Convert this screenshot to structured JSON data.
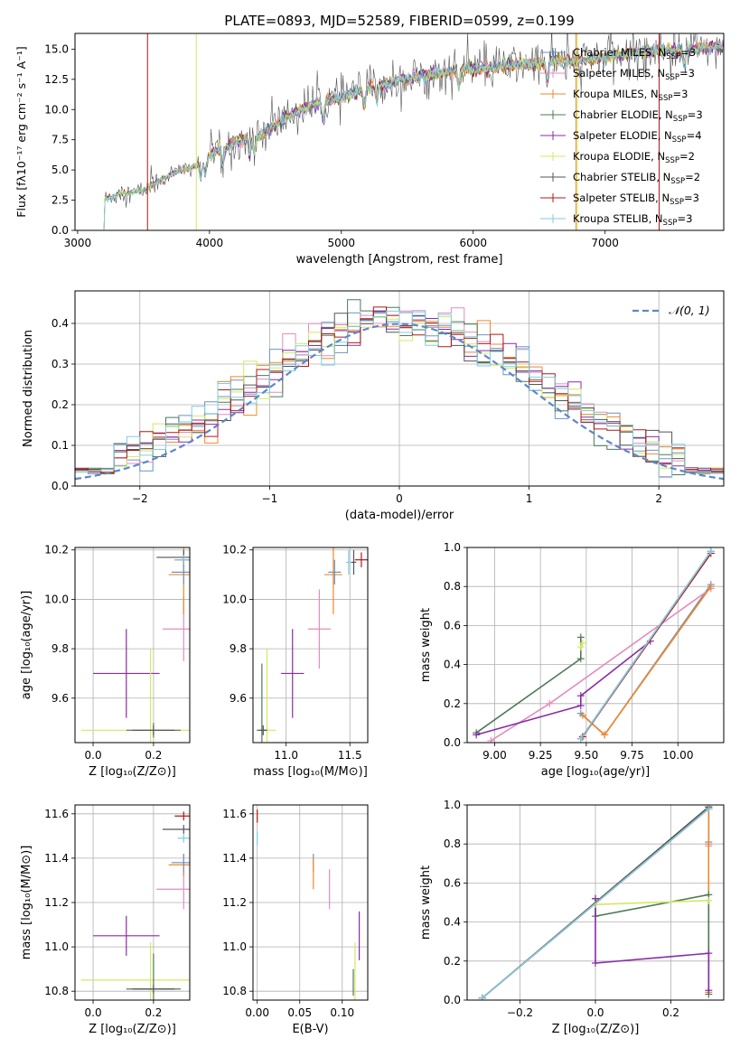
{
  "colors": {
    "Chabrier MILES": "#6a93c6",
    "Salpeter MILES": "#e48cbf",
    "Kroupa MILES": "#ee8a2a",
    "Chabrier ELODIE": "#4e7a59",
    "Salpeter ELODIE": "#8a2ba8",
    "Kroupa ELODIE": "#d4e860",
    "Chabrier STELIB": "#555555",
    "Salpeter STELIB": "#b01818",
    "Kroupa STELIB": "#7fcde0"
  },
  "chart_data": [
    {
      "id": "spectrum",
      "type": "line",
      "title": "PLATE=0893, MJD=52589, FIBERID=0599, z=0.199",
      "xlabel": "wavelength [Angstrom, rest frame]",
      "ylabel": "Flux [fλ10⁻¹⁷ erg cm⁻² s⁻¹ A⁻¹]",
      "xlim": [
        2980,
        7900
      ],
      "ylim": [
        0,
        16.3
      ],
      "xticks": [
        3000,
        4000,
        5000,
        6000,
        7000
      ],
      "yticks": [
        0.0,
        2.5,
        5.0,
        7.5,
        10.0,
        12.5,
        15.0
      ],
      "grid": false,
      "legend": "top-right",
      "continuum_x": [
        3200,
        3300,
        3400,
        3500,
        3600,
        3700,
        3800,
        3900,
        4000,
        4200,
        4400,
        4600,
        4800,
        5000,
        5200,
        5400,
        5600,
        5800,
        6000,
        6200,
        6400,
        6600,
        6800,
        7000,
        7200,
        7400,
        7600,
        7800
      ],
      "continuum_y": [
        2.5,
        3.0,
        3.1,
        3.3,
        4.0,
        4.6,
        5.0,
        5.4,
        6.2,
        7.3,
        7.9,
        9.5,
        10.5,
        11.0,
        11.8,
        12.3,
        12.7,
        13.1,
        13.4,
        13.5,
        13.8,
        14.0,
        14.0,
        14.3,
        14.6,
        14.9,
        15.0,
        15.2
      ],
      "legend_entries": [
        {
          "name": "Chabrier MILES",
          "label_main": "Chabrier MILES, N",
          "label_sub": "SSP",
          "label_end": "=3"
        },
        {
          "name": "Salpeter MILES",
          "label_main": "Salpeter MILES, N",
          "label_sub": "SSP",
          "label_end": "=3"
        },
        {
          "name": "Kroupa MILES",
          "label_main": "Kroupa MILES, N",
          "label_sub": "SSP",
          "label_end": "=3"
        },
        {
          "name": "Chabrier ELODIE",
          "label_main": "Chabrier ELODIE, N",
          "label_sub": "SSP",
          "label_end": "=3"
        },
        {
          "name": "Salpeter ELODIE",
          "label_main": "Salpeter ELODIE, N",
          "label_sub": "SSP",
          "label_end": "=4"
        },
        {
          "name": "Kroupa ELODIE",
          "label_main": "Kroupa ELODIE, N",
          "label_sub": "SSP",
          "label_end": "=2"
        },
        {
          "name": "Chabrier STELIB",
          "label_main": "Chabrier STELIB, N",
          "label_sub": "SSP",
          "label_end": "=2"
        },
        {
          "name": "Salpeter STELIB",
          "label_main": "Salpeter STELIB, N",
          "label_sub": "SSP",
          "label_end": "=3"
        },
        {
          "name": "Kroupa STELIB",
          "label_main": "Kroupa STELIB, N",
          "label_sub": "SSP",
          "label_end": "=3"
        }
      ],
      "verticals": [
        {
          "x": 3530,
          "color": "#b01818"
        },
        {
          "x": 3900,
          "color": "#d4e860"
        },
        {
          "x": 6780,
          "color": "#ee8a2a"
        },
        {
          "x": 6790,
          "color": "#d4e860"
        },
        {
          "x": 7410,
          "color": "#b01818"
        }
      ]
    },
    {
      "id": "residuals",
      "type": "histogram",
      "xlabel": "(data-model)/error",
      "ylabel": "Normed distribution",
      "xlim": [
        -2.5,
        2.5
      ],
      "ylim": [
        0,
        0.48
      ],
      "xticks": [
        -2,
        -1,
        0,
        1,
        2
      ],
      "xtick_labels": [
        "−2",
        "−1",
        "0",
        "1",
        "2"
      ],
      "yticks": [
        0.0,
        0.1,
        0.2,
        0.3,
        0.4
      ],
      "grid": true,
      "legend": "top-right",
      "gaussian_label": "𝒩(0, 1)",
      "gaussian_color": "#5b87c9",
      "bin_width": 0.1
    },
    {
      "id": "age_vs_Z",
      "type": "errorbar",
      "xlabel": "Z [log₁₀(Z/Z⊙)]",
      "ylabel": "age  [log₁₀(age/yr)]",
      "xlim": [
        -0.06,
        0.32
      ],
      "ylim": [
        9.42,
        10.21
      ],
      "xticks": [
        0.0,
        0.2
      ],
      "yticks": [
        9.6,
        9.8,
        10.0,
        10.2
      ],
      "grid": true,
      "points": [
        {
          "series": "Salpeter ELODIE",
          "x": 0.11,
          "y": 9.7,
          "xerr": 0.11,
          "yerr": 0.18
        },
        {
          "series": "Kroupa ELODIE",
          "x": 0.19,
          "y": 9.47,
          "xerr": 0.23,
          "yerr": 0.33
        },
        {
          "series": "Chabrier ELODIE",
          "x": 0.2,
          "y": 9.47,
          "xerr": 0.09,
          "yerr": 0.03
        },
        {
          "series": "Chabrier STELIB",
          "x": 0.2,
          "y": 9.47,
          "xerr": 0.07,
          "yerr": 0.02
        },
        {
          "series": "Salpeter MILES",
          "x": 0.3,
          "y": 9.88,
          "xerr": 0.07,
          "yerr": 0.13
        },
        {
          "series": "Kroupa MILES",
          "x": 0.3,
          "y": 10.1,
          "xerr": 0.05,
          "yerr": 0.16
        },
        {
          "series": "Chabrier MILES",
          "x": 0.3,
          "y": 10.11,
          "xerr": 0.04,
          "yerr": 0.05
        },
        {
          "series": "Chabrier STELIB",
          "x": 0.3,
          "y": 10.17,
          "xerr": 0.09,
          "yerr": 0.03
        },
        {
          "series": "Salpeter STELIB",
          "x": 0.3,
          "y": 10.16,
          "xerr": 0.03,
          "yerr": 0.02
        },
        {
          "series": "Kroupa STELIB",
          "x": 0.3,
          "y": 10.16,
          "xerr": 0.03,
          "yerr": 0.02
        }
      ]
    },
    {
      "id": "age_vs_mass",
      "type": "errorbar",
      "xlabel": "mass [log₁₀(M/M⊙)]",
      "ylabel": "",
      "xlim": [
        10.74,
        11.64
      ],
      "ylim": [
        9.42,
        10.21
      ],
      "xticks": [
        11.0,
        11.5
      ],
      "yticks": [
        9.6,
        9.8,
        10.0,
        10.2
      ],
      "grid": true,
      "points": [
        {
          "series": "Salpeter ELODIE",
          "x": 11.05,
          "y": 9.7,
          "xerr": 0.09,
          "yerr": 0.18
        },
        {
          "series": "Kroupa ELODIE",
          "x": 10.85,
          "y": 9.47,
          "xerr": 0.07,
          "yerr": 0.33
        },
        {
          "series": "Chabrier ELODIE",
          "x": 10.81,
          "y": 9.47,
          "xerr": 0.04,
          "yerr": 0.27
        },
        {
          "series": "Chabrier STELIB",
          "x": 10.82,
          "y": 9.47,
          "xerr": 0.03,
          "yerr": 0.02
        },
        {
          "series": "Salpeter MILES",
          "x": 11.26,
          "y": 9.88,
          "xerr": 0.09,
          "yerr": 0.16
        },
        {
          "series": "Kroupa MILES",
          "x": 11.37,
          "y": 10.1,
          "xerr": 0.07,
          "yerr": 0.16
        },
        {
          "series": "Chabrier MILES",
          "x": 11.38,
          "y": 10.11,
          "xerr": 0.05,
          "yerr": 0.05
        },
        {
          "series": "Chabrier STELIB",
          "x": 11.53,
          "y": 10.15,
          "xerr": 0.02,
          "yerr": 0.05
        },
        {
          "series": "Salpeter STELIB",
          "x": 11.59,
          "y": 10.16,
          "xerr": 0.05,
          "yerr": 0.03
        },
        {
          "series": "Kroupa STELIB",
          "x": 11.49,
          "y": 10.15,
          "xerr": 0.02,
          "yerr": 0.05
        }
      ]
    },
    {
      "id": "weight_vs_age",
      "type": "line",
      "xlabel": "age  [log₁₀(age/yr)]",
      "ylabel": "mass weight",
      "xlim": [
        8.85,
        10.25
      ],
      "ylim": [
        0,
        1.0
      ],
      "xticks": [
        9.0,
        9.25,
        9.5,
        9.75,
        10.0
      ],
      "xtick_labels": [
        "9.00",
        "9.25",
        "9.50",
        "9.75",
        "10.00"
      ],
      "yticks": [
        0.0,
        0.2,
        0.4,
        0.6,
        0.8,
        1.0
      ],
      "grid": true,
      "series": [
        {
          "name": "Chabrier MILES",
          "x": [
            9.47,
            9.6,
            10.18
          ],
          "y": [
            0.15,
            0.04,
            0.81
          ]
        },
        {
          "name": "Salpeter MILES",
          "x": [
            8.98,
            9.3,
            10.18
          ],
          "y": [
            0.01,
            0.2,
            0.79
          ]
        },
        {
          "name": "Kroupa MILES",
          "x": [
            9.48,
            9.6,
            10.18
          ],
          "y": [
            0.14,
            0.04,
            0.8
          ]
        },
        {
          "name": "Chabrier ELODIE",
          "x": [
            8.9,
            9.47,
            9.47
          ],
          "y": [
            0.05,
            0.43,
            0.54
          ]
        },
        {
          "name": "Salpeter ELODIE",
          "x": [
            8.9,
            9.47,
            9.47,
            9.85
          ],
          "y": [
            0.04,
            0.19,
            0.24,
            0.52
          ]
        },
        {
          "name": "Kroupa ELODIE",
          "x": [
            9.47,
            9.48
          ],
          "y": [
            0.49,
            0.51
          ]
        },
        {
          "name": "Chabrier STELIB",
          "x": [
            9.47,
            10.18
          ],
          "y": [
            0.02,
            0.98
          ]
        },
        {
          "name": "Salpeter STELIB",
          "x": [
            9.48,
            10.18
          ],
          "y": [
            0.03,
            0.97
          ]
        },
        {
          "name": "Kroupa STELIB",
          "x": [
            9.47,
            10.18
          ],
          "y": [
            0.02,
            0.98
          ]
        }
      ]
    },
    {
      "id": "mass_vs_Z",
      "type": "errorbar",
      "xlabel": "Z [log₁₀(Z/Z⊙)]",
      "ylabel": "mass [log₁₀(M/M⊙)]",
      "xlim": [
        -0.06,
        0.32
      ],
      "ylim": [
        10.76,
        11.64
      ],
      "xticks": [
        0.0,
        0.2
      ],
      "yticks": [
        10.8,
        11.0,
        11.2,
        11.4,
        11.6
      ],
      "grid": true,
      "points": [
        {
          "series": "Salpeter ELODIE",
          "x": 0.11,
          "y": 11.05,
          "xerr": 0.11,
          "yerr": 0.09
        },
        {
          "series": "Kroupa ELODIE",
          "x": 0.19,
          "y": 10.85,
          "xerr": 0.23,
          "yerr": 0.17
        },
        {
          "series": "Chabrier ELODIE",
          "x": 0.2,
          "y": 10.81,
          "xerr": 0.09,
          "yerr": 0.16
        },
        {
          "series": "Chabrier STELIB",
          "x": 0.2,
          "y": 10.81,
          "xerr": 0.07,
          "yerr": 0.02
        },
        {
          "series": "Salpeter MILES",
          "x": 0.3,
          "y": 11.26,
          "xerr": 0.09,
          "yerr": 0.09
        },
        {
          "series": "Kroupa MILES",
          "x": 0.3,
          "y": 11.37,
          "xerr": 0.05,
          "yerr": 0.05
        },
        {
          "series": "Chabrier MILES",
          "x": 0.3,
          "y": 11.38,
          "xerr": 0.04,
          "yerr": 0.04
        },
        {
          "series": "Chabrier STELIB",
          "x": 0.3,
          "y": 11.53,
          "xerr": 0.07,
          "yerr": 0.02
        },
        {
          "series": "Salpeter STELIB",
          "x": 0.3,
          "y": 11.59,
          "xerr": 0.03,
          "yerr": 0.02
        },
        {
          "series": "Kroupa STELIB",
          "x": 0.3,
          "y": 11.49,
          "xerr": 0.02,
          "yerr": 0.02
        }
      ]
    },
    {
      "id": "mass_vs_EBV",
      "type": "errorbar",
      "xlabel": "E(B-V)",
      "ylabel": "",
      "xlim": [
        -0.005,
        0.13
      ],
      "ylim": [
        10.76,
        11.64
      ],
      "xticks": [
        0.0,
        0.05,
        0.1
      ],
      "xtick_labels": [
        "0.00",
        "0.05",
        "0.10"
      ],
      "yticks": [
        10.8,
        11.0,
        11.2,
        11.4,
        11.6
      ],
      "grid": true,
      "points": [
        {
          "series": "Salpeter STELIB",
          "x": 0.0,
          "y": 11.59,
          "xerr": 0.0,
          "yerr": 0.03
        },
        {
          "series": "Kroupa STELIB",
          "x": 0.0,
          "y": 11.49,
          "xerr": 0.0,
          "yerr": 0.03
        },
        {
          "series": "Chabrier MILES",
          "x": 0.066,
          "y": 11.38,
          "xerr": 0.0,
          "yerr": 0.04
        },
        {
          "series": "Kroupa MILES",
          "x": 0.066,
          "y": 11.33,
          "xerr": 0.0,
          "yerr": 0.07
        },
        {
          "series": "Salpeter MILES",
          "x": 0.085,
          "y": 11.26,
          "xerr": 0.0,
          "yerr": 0.09
        },
        {
          "series": "Kroupa ELODIE",
          "x": 0.115,
          "y": 10.89,
          "xerr": 0.0,
          "yerr": 0.13
        },
        {
          "series": "Chabrier ELODIE",
          "x": 0.113,
          "y": 10.84,
          "xerr": 0.0,
          "yerr": 0.06
        },
        {
          "series": "Salpeter ELODIE",
          "x": 0.12,
          "y": 11.05,
          "xerr": 0.0,
          "yerr": 0.11
        }
      ]
    },
    {
      "id": "weight_vs_Z",
      "type": "line",
      "xlabel": "Z [log₁₀(Z/Z⊙)]",
      "ylabel": "mass weight",
      "xlim": [
        -0.34,
        0.34
      ],
      "ylim": [
        0,
        1.0
      ],
      "xticks": [
        -0.2,
        0.0,
        0.2
      ],
      "xtick_labels": [
        "−0.2",
        "0.0",
        "0.2"
      ],
      "yticks": [
        0.0,
        0.2,
        0.4,
        0.6,
        0.8,
        1.0
      ],
      "grid": true,
      "series": [
        {
          "name": "Chabrier MILES",
          "x": [
            -0.3,
            0.3,
            0.3
          ],
          "y": [
            0.01,
            0.99,
            0.81
          ]
        },
        {
          "name": "Salpeter MILES",
          "x": [
            -0.3,
            0.3,
            0.3
          ],
          "y": [
            0.01,
            0.98,
            0.79
          ]
        },
        {
          "name": "Kroupa MILES",
          "x": [
            -0.3,
            0.3,
            0.3,
            0.3
          ],
          "y": [
            0.01,
            0.99,
            0.8,
            0.04
          ]
        },
        {
          "name": "Chabrier ELODIE",
          "x": [
            0.0,
            0.0,
            0.3,
            0.3
          ],
          "y": [
            0.52,
            0.43,
            0.54,
            0.03
          ]
        },
        {
          "name": "Salpeter ELODIE",
          "x": [
            0.0,
            0.0,
            0.3,
            0.3
          ],
          "y": [
            0.52,
            0.19,
            0.24,
            0.05
          ]
        },
        {
          "name": "Kroupa ELODIE",
          "x": [
            0.0,
            0.3
          ],
          "y": [
            0.49,
            0.51
          ]
        },
        {
          "name": "Chabrier STELIB",
          "x": [
            -0.3,
            0.3
          ],
          "y": [
            0.01,
            0.99
          ]
        },
        {
          "name": "Salpeter STELIB",
          "x": [
            -0.3,
            0.3
          ],
          "y": [
            0.01,
            0.98
          ]
        },
        {
          "name": "Kroupa STELIB",
          "x": [
            -0.3,
            0.3
          ],
          "y": [
            0.01,
            0.98
          ]
        }
      ]
    }
  ]
}
